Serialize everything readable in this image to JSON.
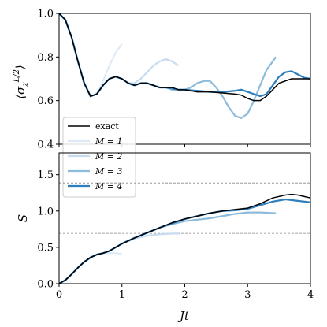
{
  "chart_data": [
    {
      "type": "line",
      "ylabel": "⟨σ_z^{L/2}⟩",
      "ylabel_main": "⟨σ",
      "ylabel_sub": "z",
      "ylabel_sup": "L/2",
      "ylabel_close": "⟩",
      "xlim": [
        0,
        4
      ],
      "ylim": [
        0.4,
        1.0
      ],
      "yticks": [
        0.4,
        0.6,
        0.8,
        1.0
      ],
      "ytick_labels": [
        "0.4",
        "0.6",
        "0.8",
        "1.0"
      ],
      "xticks": [
        0,
        1,
        2,
        3,
        4
      ],
      "legend": {
        "placement": "lower-left",
        "entries": [
          {
            "label": "exact",
            "color": "#000000"
          },
          {
            "label": "M = 1",
            "color": "#deebf7"
          },
          {
            "label": "M = 2",
            "color": "#c6dbef"
          },
          {
            "label": "M = 3",
            "color": "#8dbbdb"
          },
          {
            "label": "M = 4",
            "color": "#2e7ebc"
          }
        ]
      },
      "series": [
        {
          "name": "exact",
          "color": "#000000",
          "x": [
            0,
            0.1,
            0.2,
            0.3,
            0.4,
            0.5,
            0.6,
            0.7,
            0.8,
            0.9,
            1.0,
            1.1,
            1.2,
            1.3,
            1.4,
            1.5,
            1.6,
            1.7,
            1.8,
            1.9,
            2.0,
            2.2,
            2.4,
            2.6,
            2.8,
            2.9,
            3.0,
            3.1,
            3.2,
            3.3,
            3.4,
            3.5,
            3.6,
            3.7,
            3.8,
            3.9,
            4.0
          ],
          "y": [
            1.0,
            0.97,
            0.89,
            0.78,
            0.68,
            0.62,
            0.63,
            0.67,
            0.7,
            0.71,
            0.7,
            0.68,
            0.67,
            0.68,
            0.68,
            0.67,
            0.66,
            0.66,
            0.66,
            0.65,
            0.65,
            0.64,
            0.64,
            0.635,
            0.63,
            0.625,
            0.61,
            0.6,
            0.6,
            0.62,
            0.65,
            0.68,
            0.69,
            0.7,
            0.7,
            0.7,
            0.7
          ]
        },
        {
          "name": "M = 1",
          "color": "#deebf7",
          "x": [
            0,
            0.1,
            0.2,
            0.3,
            0.4,
            0.5,
            0.6,
            0.7,
            0.8,
            0.9,
            1.0
          ],
          "y": [
            1.0,
            0.97,
            0.89,
            0.78,
            0.68,
            0.62,
            0.63,
            0.69,
            0.76,
            0.82,
            0.86
          ]
        },
        {
          "name": "M = 2",
          "color": "#c6dbef",
          "x": [
            0,
            0.1,
            0.2,
            0.3,
            0.4,
            0.5,
            0.6,
            0.7,
            0.8,
            0.9,
            1.0,
            1.1,
            1.2,
            1.3,
            1.4,
            1.5,
            1.6,
            1.7,
            1.8,
            1.9
          ],
          "y": [
            1.0,
            0.97,
            0.89,
            0.78,
            0.68,
            0.62,
            0.63,
            0.67,
            0.7,
            0.71,
            0.7,
            0.68,
            0.68,
            0.7,
            0.73,
            0.76,
            0.78,
            0.79,
            0.78,
            0.76
          ]
        },
        {
          "name": "M = 3",
          "color": "#8dbbdb",
          "x": [
            0,
            0.1,
            0.2,
            0.3,
            0.4,
            0.5,
            0.6,
            0.7,
            0.8,
            0.9,
            1.0,
            1.1,
            1.2,
            1.3,
            1.4,
            1.5,
            1.6,
            1.7,
            1.8,
            1.9,
            2.0,
            2.1,
            2.2,
            2.3,
            2.4,
            2.5,
            2.6,
            2.7,
            2.8,
            2.9,
            3.0,
            3.1,
            3.2,
            3.3,
            3.45
          ],
          "y": [
            1.0,
            0.97,
            0.89,
            0.78,
            0.68,
            0.62,
            0.63,
            0.67,
            0.7,
            0.71,
            0.7,
            0.68,
            0.67,
            0.68,
            0.68,
            0.67,
            0.66,
            0.66,
            0.65,
            0.65,
            0.65,
            0.66,
            0.68,
            0.69,
            0.69,
            0.66,
            0.62,
            0.57,
            0.53,
            0.52,
            0.54,
            0.6,
            0.67,
            0.74,
            0.8
          ]
        },
        {
          "name": "M = 4",
          "color": "#2e7ebc",
          "x": [
            0,
            0.1,
            0.2,
            0.3,
            0.4,
            0.5,
            0.6,
            0.7,
            0.8,
            0.9,
            1.0,
            1.1,
            1.2,
            1.3,
            1.4,
            1.5,
            1.6,
            1.7,
            1.8,
            1.9,
            2.0,
            2.2,
            2.4,
            2.6,
            2.8,
            2.9,
            3.0,
            3.1,
            3.2,
            3.3,
            3.4,
            3.5,
            3.6,
            3.7,
            3.8,
            3.9,
            4.0
          ],
          "y": [
            1.0,
            0.97,
            0.89,
            0.78,
            0.68,
            0.62,
            0.63,
            0.67,
            0.7,
            0.71,
            0.7,
            0.68,
            0.67,
            0.68,
            0.68,
            0.67,
            0.66,
            0.66,
            0.655,
            0.65,
            0.65,
            0.645,
            0.64,
            0.64,
            0.645,
            0.65,
            0.64,
            0.63,
            0.62,
            0.63,
            0.67,
            0.71,
            0.73,
            0.735,
            0.72,
            0.705,
            0.7
          ]
        }
      ]
    },
    {
      "type": "line",
      "xlabel": "Jt",
      "ylabel": "S",
      "xlim": [
        0,
        4
      ],
      "ylim": [
        0.0,
        1.8
      ],
      "yticks": [
        0.0,
        0.5,
        1.0,
        1.5
      ],
      "ytick_labels": [
        "0.0",
        "0.5",
        "1.0",
        "1.5"
      ],
      "xticks": [
        0,
        1,
        2,
        3,
        4
      ],
      "xtick_labels": [
        "0",
        "1",
        "2",
        "3",
        "4"
      ],
      "reference_lines": [
        0.693,
        1.386
      ],
      "series": [
        {
          "name": "exact",
          "color": "#000000",
          "x": [
            0,
            0.1,
            0.2,
            0.3,
            0.4,
            0.5,
            0.6,
            0.7,
            0.8,
            0.9,
            1.0,
            1.2,
            1.4,
            1.6,
            1.8,
            2.0,
            2.2,
            2.4,
            2.6,
            2.8,
            3.0,
            3.2,
            3.4,
            3.6,
            3.7,
            3.8,
            4.0
          ],
          "y": [
            0,
            0.05,
            0.13,
            0.22,
            0.3,
            0.36,
            0.4,
            0.42,
            0.45,
            0.5,
            0.55,
            0.63,
            0.7,
            0.77,
            0.84,
            0.89,
            0.93,
            0.97,
            1.0,
            1.02,
            1.04,
            1.1,
            1.18,
            1.22,
            1.23,
            1.22,
            1.18
          ]
        },
        {
          "name": "M = 1",
          "color": "#deebf7",
          "x": [
            0,
            0.1,
            0.2,
            0.3,
            0.4,
            0.5,
            0.6,
            0.7,
            0.8,
            0.9,
            1.0
          ],
          "y": [
            0,
            0.05,
            0.13,
            0.22,
            0.3,
            0.36,
            0.4,
            0.42,
            0.42,
            0.42,
            0.41
          ]
        },
        {
          "name": "M = 2",
          "color": "#c6dbef",
          "x": [
            0,
            0.1,
            0.2,
            0.3,
            0.4,
            0.5,
            0.6,
            0.7,
            0.8,
            0.9,
            1.0,
            1.2,
            1.4,
            1.6,
            1.8,
            1.9
          ],
          "y": [
            0,
            0.05,
            0.13,
            0.22,
            0.3,
            0.36,
            0.4,
            0.42,
            0.45,
            0.5,
            0.55,
            0.62,
            0.66,
            0.68,
            0.69,
            0.69
          ]
        },
        {
          "name": "M = 3",
          "color": "#8dbbdb",
          "x": [
            0,
            0.1,
            0.2,
            0.3,
            0.4,
            0.5,
            0.6,
            0.7,
            0.8,
            0.9,
            1.0,
            1.2,
            1.4,
            1.6,
            1.8,
            2.0,
            2.2,
            2.4,
            2.6,
            2.8,
            3.0,
            3.2,
            3.45
          ],
          "y": [
            0,
            0.05,
            0.13,
            0.22,
            0.3,
            0.36,
            0.4,
            0.42,
            0.45,
            0.5,
            0.55,
            0.63,
            0.7,
            0.77,
            0.82,
            0.86,
            0.88,
            0.9,
            0.93,
            0.96,
            0.98,
            0.98,
            0.97
          ]
        },
        {
          "name": "M = 4",
          "color": "#2e7ebc",
          "x": [
            0,
            0.1,
            0.2,
            0.3,
            0.4,
            0.5,
            0.6,
            0.7,
            0.8,
            0.9,
            1.0,
            1.2,
            1.4,
            1.6,
            1.8,
            2.0,
            2.2,
            2.4,
            2.6,
            2.8,
            3.0,
            3.2,
            3.4,
            3.6,
            3.8,
            4.0
          ],
          "y": [
            0,
            0.05,
            0.13,
            0.22,
            0.3,
            0.36,
            0.4,
            0.42,
            0.45,
            0.5,
            0.55,
            0.63,
            0.7,
            0.77,
            0.83,
            0.89,
            0.93,
            0.97,
            1.0,
            1.01,
            1.03,
            1.08,
            1.13,
            1.16,
            1.14,
            1.12
          ]
        }
      ]
    }
  ]
}
